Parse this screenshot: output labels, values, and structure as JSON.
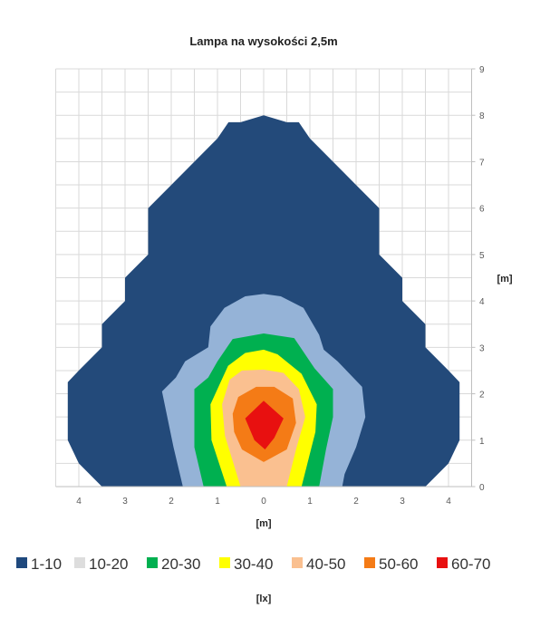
{
  "chart_data": {
    "type": "contour",
    "title": "Lampa na wysokości 2,5m",
    "xlabel": "[m]",
    "ylabel": "[m]",
    "legend_title": "[lx]",
    "legend_placement": "bottom",
    "xlim": [
      -4.5,
      4.5
    ],
    "ylim": [
      0,
      9
    ],
    "grid": true,
    "grid_step": 0.5,
    "x_ticks": [
      -4,
      -3,
      -2,
      -1,
      0,
      1,
      2,
      3,
      4
    ],
    "x_tick_labels": [
      "4",
      "3",
      "2",
      "1",
      "0",
      "1",
      "2",
      "3",
      "4"
    ],
    "y_ticks": [
      0,
      1,
      2,
      3,
      4,
      5,
      6,
      7,
      8,
      9
    ],
    "y_tick_labels": [
      "0",
      "1",
      "2",
      "3",
      "4",
      "5",
      "6",
      "7",
      "8",
      "9"
    ],
    "legend": [
      {
        "label": "1-10",
        "color": "#1F497D"
      },
      {
        "label": "10-20",
        "color": "#DDDDDD"
      },
      {
        "label": "20-30",
        "color": "#00B050"
      },
      {
        "label": "30-40",
        "color": "#FFFF00"
      },
      {
        "label": "40-50",
        "color": "#FAC090"
      },
      {
        "label": "50-60",
        "color": "#F47B16"
      },
      {
        "label": "60-70",
        "color": "#E81010"
      }
    ],
    "bands": [
      {
        "range": "1-10",
        "color": "#234A7A",
        "polygon": [
          [
            -3.5,
            0
          ],
          [
            -4,
            0.5
          ],
          [
            -4.24,
            1
          ],
          [
            -4.24,
            2.25
          ],
          [
            -4,
            2.5
          ],
          [
            -3.5,
            3
          ],
          [
            -3.5,
            3.5
          ],
          [
            -3,
            4
          ],
          [
            -3,
            4.5
          ],
          [
            -2.5,
            5
          ],
          [
            -2.5,
            6
          ],
          [
            -2,
            6.5
          ],
          [
            -1,
            7.5
          ],
          [
            -0.76,
            7.85
          ],
          [
            -0.5,
            7.85
          ],
          [
            0,
            8
          ],
          [
            0.5,
            7.85
          ],
          [
            0.76,
            7.85
          ],
          [
            1,
            7.5
          ],
          [
            2,
            6.5
          ],
          [
            2.5,
            6
          ],
          [
            2.5,
            5
          ],
          [
            3,
            4.5
          ],
          [
            3,
            4
          ],
          [
            3.5,
            3.5
          ],
          [
            3.5,
            3
          ],
          [
            4,
            2.5
          ],
          [
            4.24,
            2.25
          ],
          [
            4.24,
            1
          ],
          [
            4,
            0.5
          ],
          [
            3.5,
            0
          ]
        ]
      },
      {
        "range": "10-20",
        "color": "#95B3D7",
        "polygon": [
          [
            -1.75,
            0
          ],
          [
            -1.95,
            0.85
          ],
          [
            -2.2,
            2.05
          ],
          [
            -1.9,
            2.35
          ],
          [
            -1.7,
            2.7
          ],
          [
            -1.2,
            3.0
          ],
          [
            -1.15,
            3.45
          ],
          [
            -0.85,
            3.85
          ],
          [
            -0.4,
            4.1
          ],
          [
            0,
            4.15
          ],
          [
            0.37,
            4.1
          ],
          [
            0.86,
            3.85
          ],
          [
            1.2,
            3.27
          ],
          [
            1.3,
            2.95
          ],
          [
            1.6,
            2.7
          ],
          [
            2.13,
            2.15
          ],
          [
            2.2,
            1.5
          ],
          [
            2.0,
            0.85
          ],
          [
            1.75,
            0.27
          ],
          [
            1.7,
            0
          ]
        ]
      },
      {
        "range": "20-30",
        "color": "#00B050",
        "polygon": [
          [
            -1.3,
            0
          ],
          [
            -1.5,
            0.85
          ],
          [
            -1.5,
            2.1
          ],
          [
            -1.2,
            2.35
          ],
          [
            -1,
            2.7
          ],
          [
            -0.67,
            3.18
          ],
          [
            0,
            3.3
          ],
          [
            0.66,
            3.2
          ],
          [
            1.1,
            2.55
          ],
          [
            1.5,
            2.1
          ],
          [
            1.5,
            1.5
          ],
          [
            1.35,
            0.8
          ],
          [
            1.2,
            0
          ]
        ]
      },
      {
        "range": "30-40",
        "color": "#FFFF00",
        "polygon": [
          [
            -0.8,
            0
          ],
          [
            -1.13,
            1.0
          ],
          [
            -1.15,
            1.77
          ],
          [
            -0.77,
            2.6
          ],
          [
            -0.4,
            2.88
          ],
          [
            0,
            2.95
          ],
          [
            0.3,
            2.85
          ],
          [
            0.82,
            2.43
          ],
          [
            1.15,
            1.77
          ],
          [
            1.12,
            1.18
          ],
          [
            0.82,
            0
          ]
        ]
      },
      {
        "range": "40-50",
        "color": "#FAC090",
        "polygon": [
          [
            -0.5,
            0
          ],
          [
            -0.84,
            1.1
          ],
          [
            -0.9,
            1.77
          ],
          [
            -0.74,
            2.3
          ],
          [
            -0.47,
            2.5
          ],
          [
            0,
            2.52
          ],
          [
            0.43,
            2.45
          ],
          [
            0.76,
            2.1
          ],
          [
            0.9,
            1.5
          ],
          [
            0.7,
            0.8
          ],
          [
            0.5,
            0
          ]
        ]
      },
      {
        "range": "50-60",
        "color": "#F47B16",
        "polygon": [
          [
            -0.67,
            1.57
          ],
          [
            -0.55,
            1.93
          ],
          [
            -0.16,
            2.15
          ],
          [
            0.23,
            2.15
          ],
          [
            0.63,
            1.9
          ],
          [
            0.7,
            1.37
          ],
          [
            0.5,
            0.8
          ],
          [
            0,
            0.53
          ],
          [
            -0.47,
            0.8
          ],
          [
            -0.64,
            1.18
          ]
        ]
      },
      {
        "range": "60-70",
        "color": "#E81010",
        "polygon": [
          [
            -0.4,
            1.47
          ],
          [
            0,
            1.85
          ],
          [
            0.43,
            1.47
          ],
          [
            0.23,
            1.05
          ],
          [
            0.03,
            0.8
          ],
          [
            -0.2,
            1.0
          ]
        ]
      }
    ]
  }
}
